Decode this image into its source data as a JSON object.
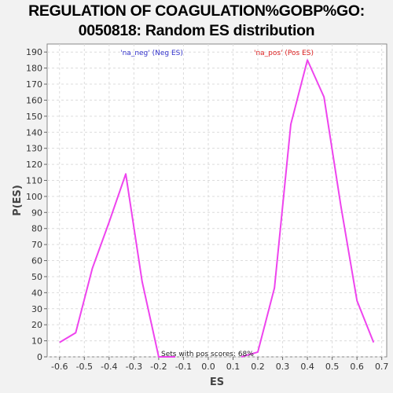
{
  "chart_data": {
    "type": "line",
    "title_line1": "REGULATION OF COAGULATION%GOBP%GO:",
    "title_line2": "0050818: Random ES distribution",
    "xlabel": "ES",
    "ylabel": "P(ES)",
    "xlim": [
      -0.65,
      0.72
    ],
    "ylim": [
      0,
      195
    ],
    "x_ticks": [
      -0.6,
      -0.5,
      -0.4,
      -0.3,
      -0.2,
      -0.1,
      0.0,
      0.1,
      0.2,
      0.3,
      0.4,
      0.5,
      0.6,
      0.7
    ],
    "x_tick_labels": [
      "-0.6",
      "-0.5",
      "-0.4",
      "-0.3",
      "-0.2",
      "-0.1",
      "0.0",
      "0.1",
      "0.2",
      "0.3",
      "0.4",
      "0.5",
      "0.6",
      "0.7"
    ],
    "y_ticks": [
      0,
      10,
      20,
      30,
      40,
      50,
      60,
      70,
      80,
      90,
      100,
      110,
      120,
      130,
      140,
      150,
      160,
      170,
      180,
      190
    ],
    "grid": true,
    "legend": [
      {
        "label": "'na_neg' (Neg ES)",
        "color": "#3333cc"
      },
      {
        "label": "'na_pos' (Pos ES)",
        "color": "#dd2222"
      }
    ],
    "line_color": "#ee44ee",
    "annotation": "Sets with pos scores: 68%",
    "series": [
      {
        "x": [
          -0.6,
          -0.535,
          -0.468,
          -0.4,
          -0.333,
          -0.267,
          -0.2,
          -0.133
        ],
        "y": [
          9,
          15,
          55,
          84,
          114,
          47,
          0,
          0
        ]
      },
      {
        "x": [
          0.133,
          0.2,
          0.267,
          0.333,
          0.4,
          0.467,
          0.535,
          0.6,
          0.667
        ],
        "y": [
          0,
          3,
          43,
          145,
          185,
          162,
          94,
          35,
          9
        ]
      }
    ]
  }
}
